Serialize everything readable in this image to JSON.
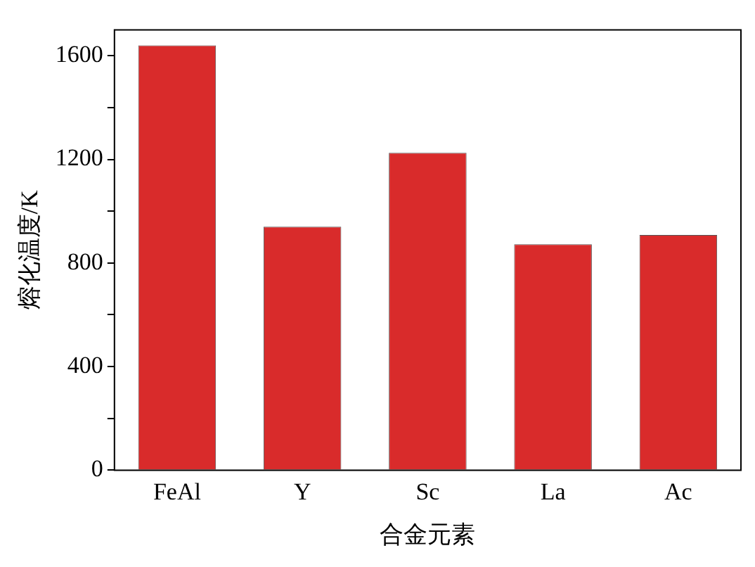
{
  "chart_data": {
    "type": "bar",
    "xlabel": "合金元素",
    "ylabel": "熔化温度/K",
    "categories": [
      "FeAl",
      "Y",
      "Sc",
      "La",
      "Ac"
    ],
    "values": [
      1640,
      940,
      1225,
      872,
      908
    ],
    "color": "#d92b2b",
    "ylim": [
      0,
      1700
    ],
    "yticks": [
      0,
      {
        "value": 200,
        "label": null
      },
      400,
      {
        "value": 600,
        "label": null
      },
      800,
      {
        "value": 1000,
        "label": null
      },
      1200,
      {
        "value": 1400,
        "label": null
      },
      1600
    ],
    "grid": false
  }
}
